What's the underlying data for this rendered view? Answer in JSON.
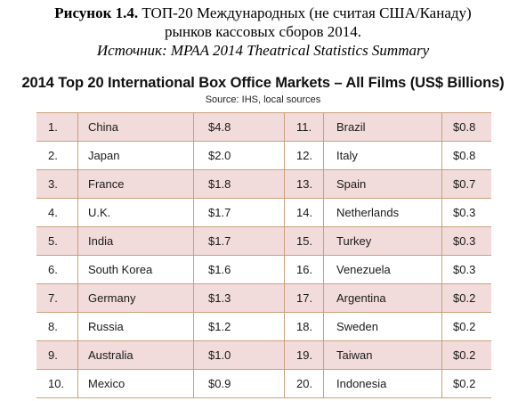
{
  "caption": {
    "label": "Рисунок 1.4.",
    "line1": "ТОП-20 Международных (не считая США/Канаду)",
    "line2": "рынков кассовых сборов 2014.",
    "source": "Источник: MPAA 2014 Theatrical Statistics Summary"
  },
  "table": {
    "title": "2014 Top 20 International Box Office Markets – All Films (US$ Billions)",
    "source": "Source: IHS, local sources",
    "shade_color": "#f2dcdb",
    "border_color": "#c9a07b",
    "rows": [
      {
        "left": {
          "rank": "1.",
          "name": "China",
          "value": "$4.8"
        },
        "right": {
          "rank": "11.",
          "name": "Brazil",
          "value": "$0.8"
        }
      },
      {
        "left": {
          "rank": "2.",
          "name": "Japan",
          "value": "$2.0"
        },
        "right": {
          "rank": "12.",
          "name": "Italy",
          "value": "$0.8"
        }
      },
      {
        "left": {
          "rank": "3.",
          "name": "France",
          "value": "$1.8"
        },
        "right": {
          "rank": "13.",
          "name": "Spain",
          "value": "$0.7"
        }
      },
      {
        "left": {
          "rank": "4.",
          "name": "U.K.",
          "value": "$1.7"
        },
        "right": {
          "rank": "14.",
          "name": "Netherlands",
          "value": "$0.3"
        }
      },
      {
        "left": {
          "rank": "5.",
          "name": "India",
          "value": "$1.7"
        },
        "right": {
          "rank": "15.",
          "name": "Turkey",
          "value": "$0.3"
        }
      },
      {
        "left": {
          "rank": "6.",
          "name": "South Korea",
          "value": "$1.6"
        },
        "right": {
          "rank": "16.",
          "name": "Venezuela",
          "value": "$0.3"
        }
      },
      {
        "left": {
          "rank": "7.",
          "name": "Germany",
          "value": "$1.3"
        },
        "right": {
          "rank": "17.",
          "name": "Argentina",
          "value": "$0.2"
        }
      },
      {
        "left": {
          "rank": "8.",
          "name": "Russia",
          "value": "$1.2"
        },
        "right": {
          "rank": "18.",
          "name": "Sweden",
          "value": "$0.2"
        }
      },
      {
        "left": {
          "rank": "9.",
          "name": "Australia",
          "value": "$1.0"
        },
        "right": {
          "rank": "19.",
          "name": "Taiwan",
          "value": "$0.2"
        }
      },
      {
        "left": {
          "rank": "10.",
          "name": "Mexico",
          "value": "$0.9"
        },
        "right": {
          "rank": "20.",
          "name": "Indonesia",
          "value": "$0.2"
        }
      }
    ]
  }
}
